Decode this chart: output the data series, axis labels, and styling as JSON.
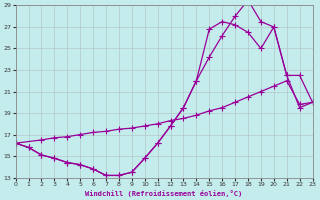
{
  "xlabel": "Windchill (Refroidissement éolien,°C)",
  "bg_color": "#c5eced",
  "line_color": "#990099",
  "grid_color": "#b0c8c8",
  "xmin": 0,
  "xmax": 23,
  "ymin": 13,
  "ymax": 29,
  "yticks": [
    13,
    15,
    17,
    19,
    21,
    23,
    25,
    27,
    29
  ],
  "xticks": [
    0,
    1,
    2,
    3,
    4,
    5,
    6,
    7,
    8,
    9,
    10,
    11,
    12,
    13,
    14,
    15,
    16,
    17,
    18,
    19,
    20,
    21,
    22,
    23
  ],
  "line1_x": [
    0,
    1,
    2,
    3,
    4,
    5,
    6,
    7,
    8,
    9,
    10,
    11,
    12,
    13,
    14,
    15,
    16,
    17,
    18,
    19,
    20,
    21,
    22,
    23
  ],
  "line1_y": [
    16.2,
    15.8,
    15.1,
    14.8,
    14.4,
    14.2,
    13.8,
    13.2,
    13.2,
    13.5,
    14.8,
    16.2,
    17.8,
    19.5,
    22.0,
    24.2,
    26.2,
    28.0,
    29.5,
    27.5,
    27.0,
    22.5,
    19.5,
    20.0
  ],
  "line2_x": [
    0,
    2,
    3,
    4,
    5,
    6,
    7,
    8,
    9,
    10,
    11,
    12,
    13,
    14,
    15,
    16,
    17,
    18,
    19,
    20,
    21,
    22,
    23
  ],
  "line2_y": [
    16.2,
    16.5,
    16.7,
    16.8,
    17.0,
    17.2,
    17.3,
    17.5,
    17.6,
    17.8,
    18.0,
    18.3,
    18.5,
    18.8,
    19.2,
    19.5,
    20.0,
    20.5,
    21.0,
    21.5,
    22.0,
    19.8,
    20.0
  ],
  "line3_x": [
    0,
    1,
    2,
    3,
    4,
    5,
    6,
    7,
    8,
    9,
    10,
    11,
    12,
    13,
    14,
    15,
    16,
    17,
    18,
    19,
    20,
    21,
    22,
    23
  ],
  "line3_y": [
    16.2,
    15.8,
    15.1,
    14.8,
    14.4,
    14.2,
    13.8,
    13.2,
    13.2,
    13.5,
    14.8,
    16.2,
    17.8,
    19.5,
    22.0,
    26.8,
    27.5,
    27.2,
    26.5,
    25.0,
    27.0,
    22.5,
    22.5,
    20.0
  ]
}
